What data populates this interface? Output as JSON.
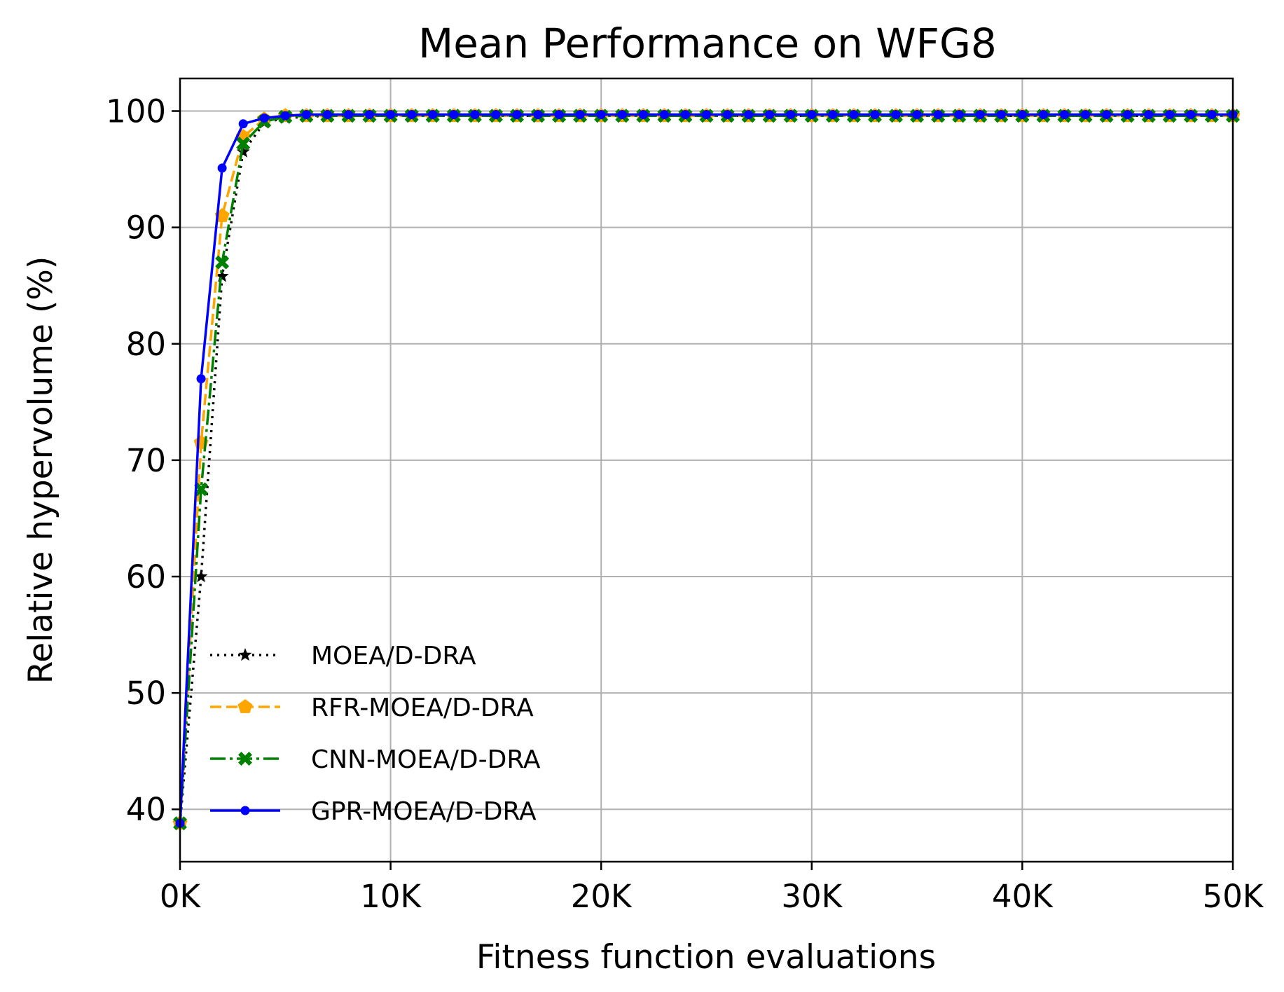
{
  "chart_data": {
    "type": "line",
    "title": "Mean Performance on WFG8",
    "xlabel": "Fitness function evaluations",
    "ylabel": "Relative hypervolume (%)",
    "xlim": [
      0,
      50000
    ],
    "ylim": [
      35.5,
      102.8
    ],
    "xticks": [
      0,
      10000,
      20000,
      30000,
      40000,
      50000
    ],
    "xtick_labels": [
      "0K",
      "10K",
      "20K",
      "30K",
      "40K",
      "50K"
    ],
    "yticks": [
      40,
      50,
      60,
      70,
      80,
      90,
      100
    ],
    "ytick_labels": [
      "40",
      "50",
      "60",
      "70",
      "80",
      "90",
      "100"
    ],
    "grid": true,
    "legend_position": "lower-left",
    "x": [
      0,
      1000,
      2000,
      3000,
      4000,
      5000,
      6000,
      7000,
      8000,
      9000,
      10000,
      11000,
      12000,
      13000,
      14000,
      15000,
      16000,
      17000,
      18000,
      19000,
      20000,
      21000,
      22000,
      23000,
      24000,
      25000,
      26000,
      27000,
      28000,
      29000,
      30000,
      31000,
      32000,
      33000,
      34000,
      35000,
      36000,
      37000,
      38000,
      39000,
      40000,
      41000,
      42000,
      43000,
      44000,
      45000,
      46000,
      47000,
      48000,
      49000,
      50000
    ],
    "series": [
      {
        "name": "MOEA/D-DRA",
        "color": "#000000",
        "linestyle": "dotted",
        "marker": "star",
        "values": [
          38.8,
          60.0,
          85.8,
          96.5,
          99.0,
          99.4,
          99.5,
          99.6,
          99.6,
          99.6,
          99.6,
          99.6,
          99.6,
          99.6,
          99.6,
          99.6,
          99.6,
          99.6,
          99.6,
          99.6,
          99.6,
          99.6,
          99.6,
          99.6,
          99.6,
          99.6,
          99.6,
          99.6,
          99.6,
          99.6,
          99.6,
          99.6,
          99.6,
          99.6,
          99.6,
          99.6,
          99.6,
          99.6,
          99.6,
          99.6,
          99.6,
          99.6,
          99.6,
          99.6,
          99.6,
          99.6,
          99.6,
          99.6,
          99.6,
          99.6,
          99.6
        ]
      },
      {
        "name": "RFR-MOEA/D-DRA",
        "color": "#FFA500",
        "linestyle": "dashed",
        "marker": "pentagon",
        "values": [
          38.8,
          71.5,
          91.0,
          97.8,
          99.3,
          99.6,
          99.6,
          99.6,
          99.6,
          99.6,
          99.6,
          99.6,
          99.6,
          99.6,
          99.6,
          99.6,
          99.6,
          99.6,
          99.6,
          99.6,
          99.6,
          99.6,
          99.6,
          99.6,
          99.6,
          99.6,
          99.6,
          99.6,
          99.6,
          99.6,
          99.6,
          99.6,
          99.6,
          99.6,
          99.6,
          99.6,
          99.6,
          99.6,
          99.6,
          99.6,
          99.6,
          99.6,
          99.6,
          99.6,
          99.6,
          99.6,
          99.6,
          99.6,
          99.6,
          99.6,
          99.6
        ]
      },
      {
        "name": "CNN-MOEA/D-DRA",
        "color": "#008000",
        "linestyle": "dashdot",
        "marker": "x-filled",
        "values": [
          38.8,
          67.5,
          87.0,
          97.2,
          99.1,
          99.5,
          99.6,
          99.6,
          99.6,
          99.6,
          99.6,
          99.6,
          99.6,
          99.6,
          99.6,
          99.6,
          99.6,
          99.6,
          99.6,
          99.6,
          99.6,
          99.6,
          99.6,
          99.6,
          99.6,
          99.6,
          99.6,
          99.6,
          99.6,
          99.6,
          99.6,
          99.6,
          99.6,
          99.6,
          99.6,
          99.6,
          99.6,
          99.6,
          99.6,
          99.6,
          99.6,
          99.6,
          99.6,
          99.6,
          99.6,
          99.6,
          99.6,
          99.6,
          99.6,
          99.6,
          99.6
        ]
      },
      {
        "name": "GPR-MOEA/D-DRA",
        "color": "#0000FF",
        "linestyle": "solid",
        "marker": "dot",
        "values": [
          38.8,
          77.0,
          95.1,
          98.9,
          99.4,
          99.6,
          99.7,
          99.7,
          99.7,
          99.7,
          99.7,
          99.7,
          99.7,
          99.7,
          99.7,
          99.7,
          99.7,
          99.7,
          99.7,
          99.7,
          99.7,
          99.7,
          99.7,
          99.7,
          99.7,
          99.7,
          99.7,
          99.7,
          99.7,
          99.7,
          99.7,
          99.7,
          99.7,
          99.7,
          99.7,
          99.7,
          99.7,
          99.7,
          99.7,
          99.7,
          99.7,
          99.7,
          99.7,
          99.7,
          99.7,
          99.7,
          99.7,
          99.7,
          99.7,
          99.7,
          99.7
        ]
      }
    ]
  }
}
